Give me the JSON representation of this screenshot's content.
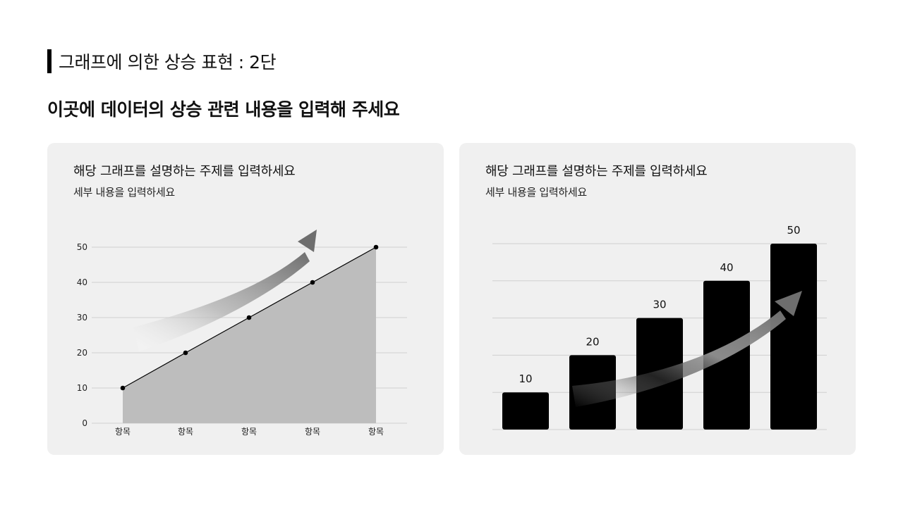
{
  "section_title": "그래프에 의한 상승 표현 : 2단",
  "headline": "이곳에 데이터의 상승 관련 내용을 입력해 주세요",
  "cards": [
    {
      "title": "해당 그래프를 설명하는 주제를 입력하세요",
      "subtitle": "세부 내용을 입력하세요"
    },
    {
      "title": "해당 그래프를 설명하는 주제를 입력하세요",
      "subtitle": "세부 내용을 입력하세요"
    }
  ],
  "colors": {
    "area_fill": "#bdbdbd",
    "bar_fill": "#000000",
    "card_bg": "#f0f0f0",
    "arrow": "#7a7a7a"
  },
  "icons": {
    "trend_arrow": "up-right-arrow-icon"
  },
  "chart_data": [
    {
      "type": "area",
      "categories": [
        "항목",
        "항목",
        "항목",
        "항목",
        "항목"
      ],
      "values": [
        10,
        20,
        30,
        40,
        50
      ],
      "yticks": [
        0,
        10,
        20,
        30,
        40,
        50
      ],
      "ylim": [
        0,
        50
      ],
      "grid": true,
      "markers": true
    },
    {
      "type": "bar",
      "categories": [
        "",
        "",
        "",
        "",
        ""
      ],
      "values": [
        10,
        20,
        30,
        40,
        50
      ],
      "data_labels": [
        "10",
        "20",
        "30",
        "40",
        "50"
      ],
      "ylim": [
        0,
        50
      ],
      "grid": true
    }
  ]
}
